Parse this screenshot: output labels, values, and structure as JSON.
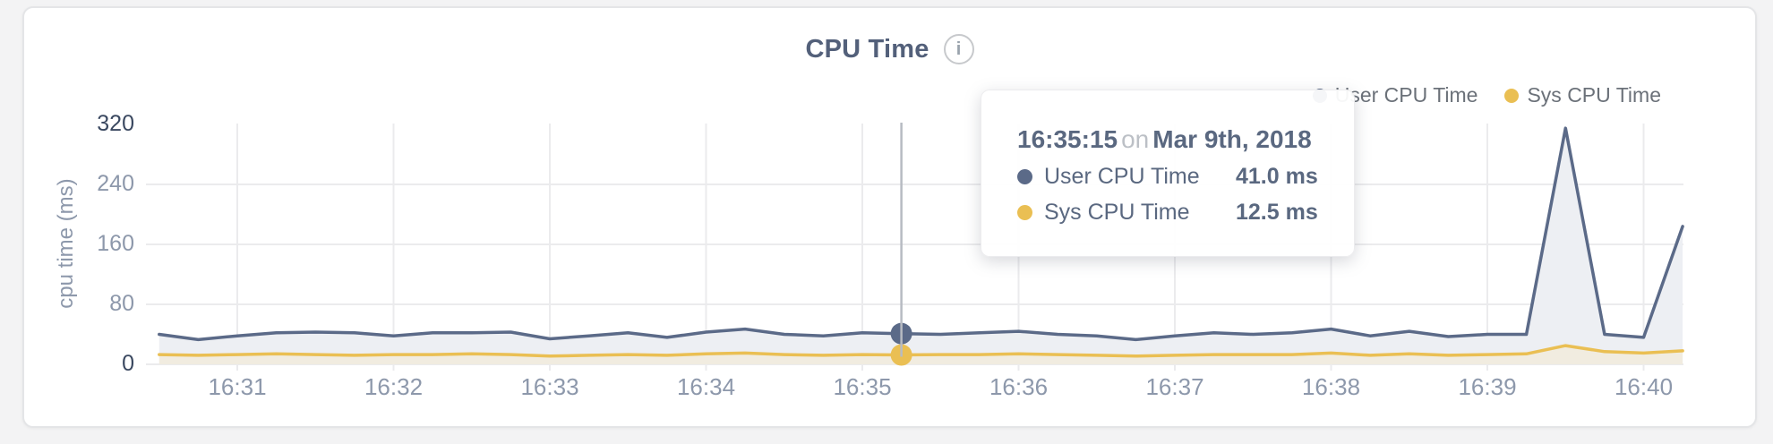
{
  "page": {
    "background": "#f3f3f4",
    "card_background": "#ffffff"
  },
  "chart": {
    "title": "CPU Time",
    "info_icon_glyph": "i",
    "legend": [
      {
        "label": "User CPU Time",
        "color": "#5b6a88"
      },
      {
        "label": "Sys CPU Time",
        "color": "#eabf53"
      }
    ]
  },
  "tooltip": {
    "time": "16:35:15",
    "connector": "on",
    "date": "Mar 9th, 2018",
    "rows": [
      {
        "label": "User CPU Time",
        "value": "41.0 ms",
        "color": "#5b6a88"
      },
      {
        "label": "Sys CPU Time",
        "value": "12.5 ms",
        "color": "#eabf53"
      }
    ]
  },
  "chart_data": {
    "type": "area",
    "title": "CPU Time",
    "xlabel": "",
    "ylabel": "cpu time (ms)",
    "ylim": [
      0,
      320
    ],
    "y_ticks": [
      0,
      80,
      160,
      240,
      320
    ],
    "x_ticklabels": [
      "16:31",
      "16:32",
      "16:33",
      "16:34",
      "16:35",
      "16:36",
      "16:37",
      "16:38",
      "16:39",
      "16:40"
    ],
    "grid": true,
    "legend_position": "top-right",
    "x": [
      "16:30:30",
      "16:30:45",
      "16:31:00",
      "16:31:15",
      "16:31:30",
      "16:31:45",
      "16:32:00",
      "16:32:15",
      "16:32:30",
      "16:32:45",
      "16:33:00",
      "16:33:15",
      "16:33:30",
      "16:33:45",
      "16:34:00",
      "16:34:15",
      "16:34:30",
      "16:34:45",
      "16:35:00",
      "16:35:15",
      "16:35:30",
      "16:35:45",
      "16:36:00",
      "16:36:15",
      "16:36:30",
      "16:36:45",
      "16:37:00",
      "16:37:15",
      "16:37:30",
      "16:37:45",
      "16:38:00",
      "16:38:15",
      "16:38:30",
      "16:38:45",
      "16:39:00",
      "16:39:15",
      "16:39:30",
      "16:39:45",
      "16:40:00",
      "16:40:15"
    ],
    "series": [
      {
        "name": "User CPU Time",
        "color": "#5b6a88",
        "fill": "#edeff3",
        "values": [
          40,
          33,
          38,
          42,
          43,
          42,
          38,
          42,
          42,
          43,
          34,
          38,
          42,
          36,
          43,
          47,
          40,
          38,
          42,
          41,
          40,
          42,
          44,
          40,
          38,
          33,
          38,
          42,
          40,
          42,
          47,
          38,
          44,
          37,
          40,
          40,
          315,
          40,
          36,
          184
        ]
      },
      {
        "name": "Sys CPU Time",
        "color": "#eabf53",
        "fill": "#f1ece0",
        "values": [
          13,
          12,
          13,
          14,
          13,
          12,
          13,
          13,
          14,
          13,
          11,
          12,
          13,
          12,
          14,
          15,
          13,
          12,
          13,
          12.5,
          13,
          13,
          14,
          13,
          12,
          11,
          12,
          13,
          13,
          13,
          15,
          12,
          14,
          12,
          13,
          14,
          25,
          17,
          15,
          18
        ]
      }
    ],
    "highlight": {
      "time": "16:35:15",
      "user_value_ms": 41.0,
      "sys_value_ms": 12.5
    },
    "grid_color": "#ebebed",
    "hover_line_color": "#b7bbc2"
  }
}
